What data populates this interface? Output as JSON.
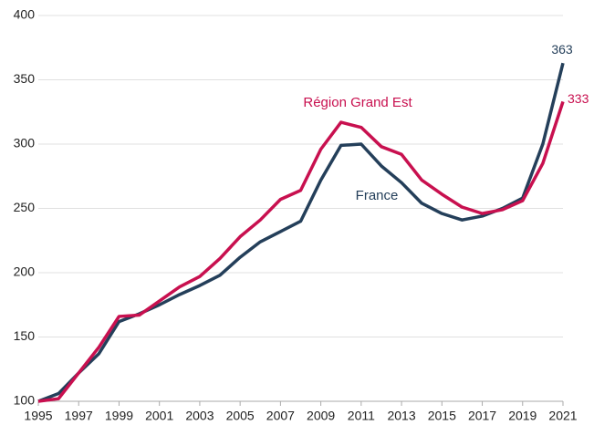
{
  "chart_data": {
    "type": "line",
    "x": [
      1995,
      1996,
      1997,
      1998,
      1999,
      2000,
      2001,
      2002,
      2003,
      2004,
      2005,
      2006,
      2007,
      2008,
      2009,
      2010,
      2011,
      2012,
      2013,
      2014,
      2015,
      2016,
      2017,
      2018,
      2019,
      2020,
      2021
    ],
    "series": [
      {
        "name": "France",
        "color": "#243f5a",
        "values": [
          100,
          106,
          122,
          137,
          162,
          168,
          175,
          183,
          190,
          198,
          212,
          224,
          232,
          240,
          272,
          299,
          300,
          283,
          270,
          254,
          246,
          241,
          244,
          250,
          258,
          300,
          363
        ]
      },
      {
        "name": "Région Grand Est",
        "color": "#c8104f",
        "values": [
          100,
          102,
          122,
          142,
          166,
          167,
          178,
          189,
          197,
          211,
          228,
          241,
          257,
          264,
          296,
          317,
          313,
          298,
          292,
          272,
          261,
          251,
          246,
          249,
          256,
          285,
          333
        ]
      }
    ],
    "xlim": [
      1995,
      2021
    ],
    "xticks": [
      1995,
      1997,
      1999,
      2001,
      2003,
      2005,
      2007,
      2009,
      2011,
      2013,
      2015,
      2017,
      2019,
      2021
    ],
    "ylim": [
      100,
      400
    ],
    "yticks": [
      100,
      150,
      200,
      250,
      300,
      350,
      400
    ],
    "grid": true
  }
}
